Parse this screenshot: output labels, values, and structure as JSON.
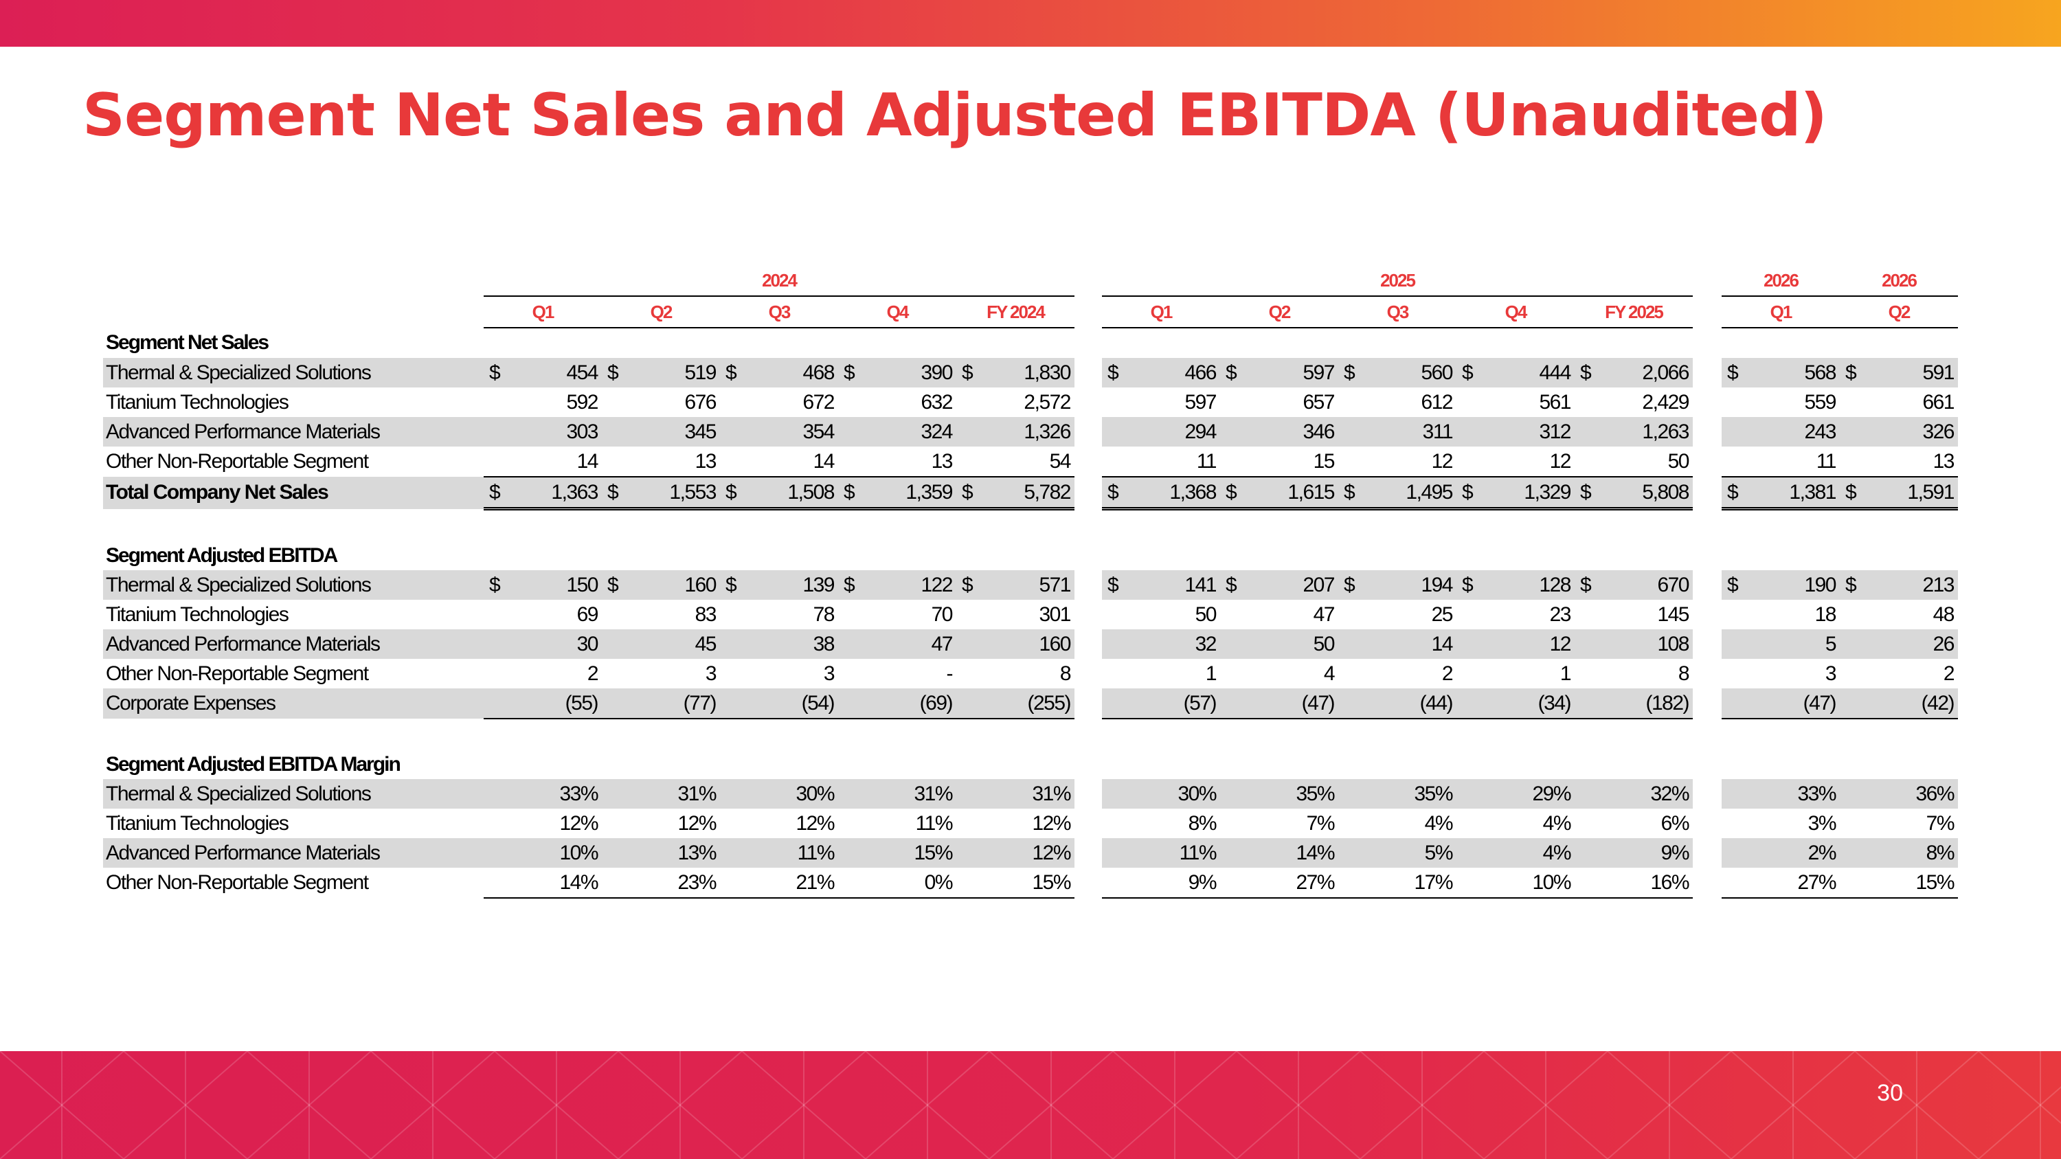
{
  "title": "Segment Net Sales and Adjusted EBITDA (Unaudited)",
  "page_number": "30",
  "colors": {
    "accent": "#e8393a",
    "band": "#db1f51",
    "shade": "#d9d9d9"
  },
  "years": {
    "y2024": "2024",
    "y2025": "2025",
    "y2026a": "2026",
    "y2026b": "2026"
  },
  "quarters": {
    "q1_24": "Q1",
    "q2_24": "Q2",
    "q3_24": "Q3",
    "q4_24": "Q4",
    "fy24": "FY 2024",
    "q1_25": "Q1",
    "q2_25": "Q2",
    "q3_25": "Q3",
    "q4_25": "Q4",
    "fy25": "FY 2025",
    "q1_26": "Q1",
    "q2_26": "Q2"
  },
  "currency": "$",
  "sections": {
    "net_sales": {
      "title": "Segment Net Sales",
      "rows": [
        {
          "label": "Thermal & Specialized Solutions",
          "values": [
            "454",
            "519",
            "468",
            "390",
            "1,830",
            "466",
            "597",
            "560",
            "444",
            "2,066",
            "568",
            "591"
          ]
        },
        {
          "label": "Titanium Technologies",
          "values": [
            "592",
            "676",
            "672",
            "632",
            "2,572",
            "597",
            "657",
            "612",
            "561",
            "2,429",
            "559",
            "661"
          ]
        },
        {
          "label": "Advanced Performance Materials",
          "values": [
            "303",
            "345",
            "354",
            "324",
            "1,326",
            "294",
            "346",
            "311",
            "312",
            "1,263",
            "243",
            "326"
          ]
        },
        {
          "label": "Other Non-Reportable Segment",
          "values": [
            "14",
            "13",
            "14",
            "13",
            "54",
            "11",
            "15",
            "12",
            "12",
            "50",
            "11",
            "13"
          ]
        }
      ],
      "total": {
        "label": "Total Company Net Sales",
        "values": [
          "1,363",
          "1,553",
          "1,508",
          "1,359",
          "5,782",
          "1,368",
          "1,615",
          "1,495",
          "1,329",
          "5,808",
          "1,381",
          "1,591"
        ]
      }
    },
    "ebitda": {
      "title": "Segment Adjusted EBITDA",
      "rows": [
        {
          "label": "Thermal & Specialized Solutions",
          "values": [
            "150",
            "160",
            "139",
            "122",
            "571",
            "141",
            "207",
            "194",
            "128",
            "670",
            "190",
            "213"
          ]
        },
        {
          "label": "Titanium Technologies",
          "values": [
            "69",
            "83",
            "78",
            "70",
            "301",
            "50",
            "47",
            "25",
            "23",
            "145",
            "18",
            "48"
          ]
        },
        {
          "label": "Advanced Performance Materials",
          "values": [
            "30",
            "45",
            "38",
            "47",
            "160",
            "32",
            "50",
            "14",
            "12",
            "108",
            "5",
            "26"
          ]
        },
        {
          "label": "Other Non-Reportable Segment",
          "values": [
            "2",
            "3",
            "3",
            "-",
            "8",
            "1",
            "4",
            "2",
            "1",
            "8",
            "3",
            "2"
          ]
        },
        {
          "label": "Corporate Expenses",
          "values": [
            "(55)",
            "(77)",
            "(54)",
            "(69)",
            "(255)",
            "(57)",
            "(47)",
            "(44)",
            "(34)",
            "(182)",
            "(47)",
            "(42)"
          ]
        }
      ]
    },
    "margin": {
      "title": "Segment Adjusted EBITDA Margin",
      "rows": [
        {
          "label": "Thermal & Specialized Solutions",
          "values": [
            "33%",
            "31%",
            "30%",
            "31%",
            "31%",
            "30%",
            "35%",
            "35%",
            "29%",
            "32%",
            "33%",
            "36%"
          ]
        },
        {
          "label": "Titanium Technologies",
          "values": [
            "12%",
            "12%",
            "12%",
            "11%",
            "12%",
            "8%",
            "7%",
            "4%",
            "4%",
            "6%",
            "3%",
            "7%"
          ]
        },
        {
          "label": "Advanced Performance Materials",
          "values": [
            "10%",
            "13%",
            "11%",
            "15%",
            "12%",
            "11%",
            "14%",
            "5%",
            "4%",
            "9%",
            "2%",
            "8%"
          ]
        },
        {
          "label": "Other Non-Reportable Segment",
          "values": [
            "14%",
            "23%",
            "21%",
            "0%",
            "15%",
            "9%",
            "27%",
            "17%",
            "10%",
            "16%",
            "27%",
            "15%"
          ]
        }
      ]
    }
  }
}
